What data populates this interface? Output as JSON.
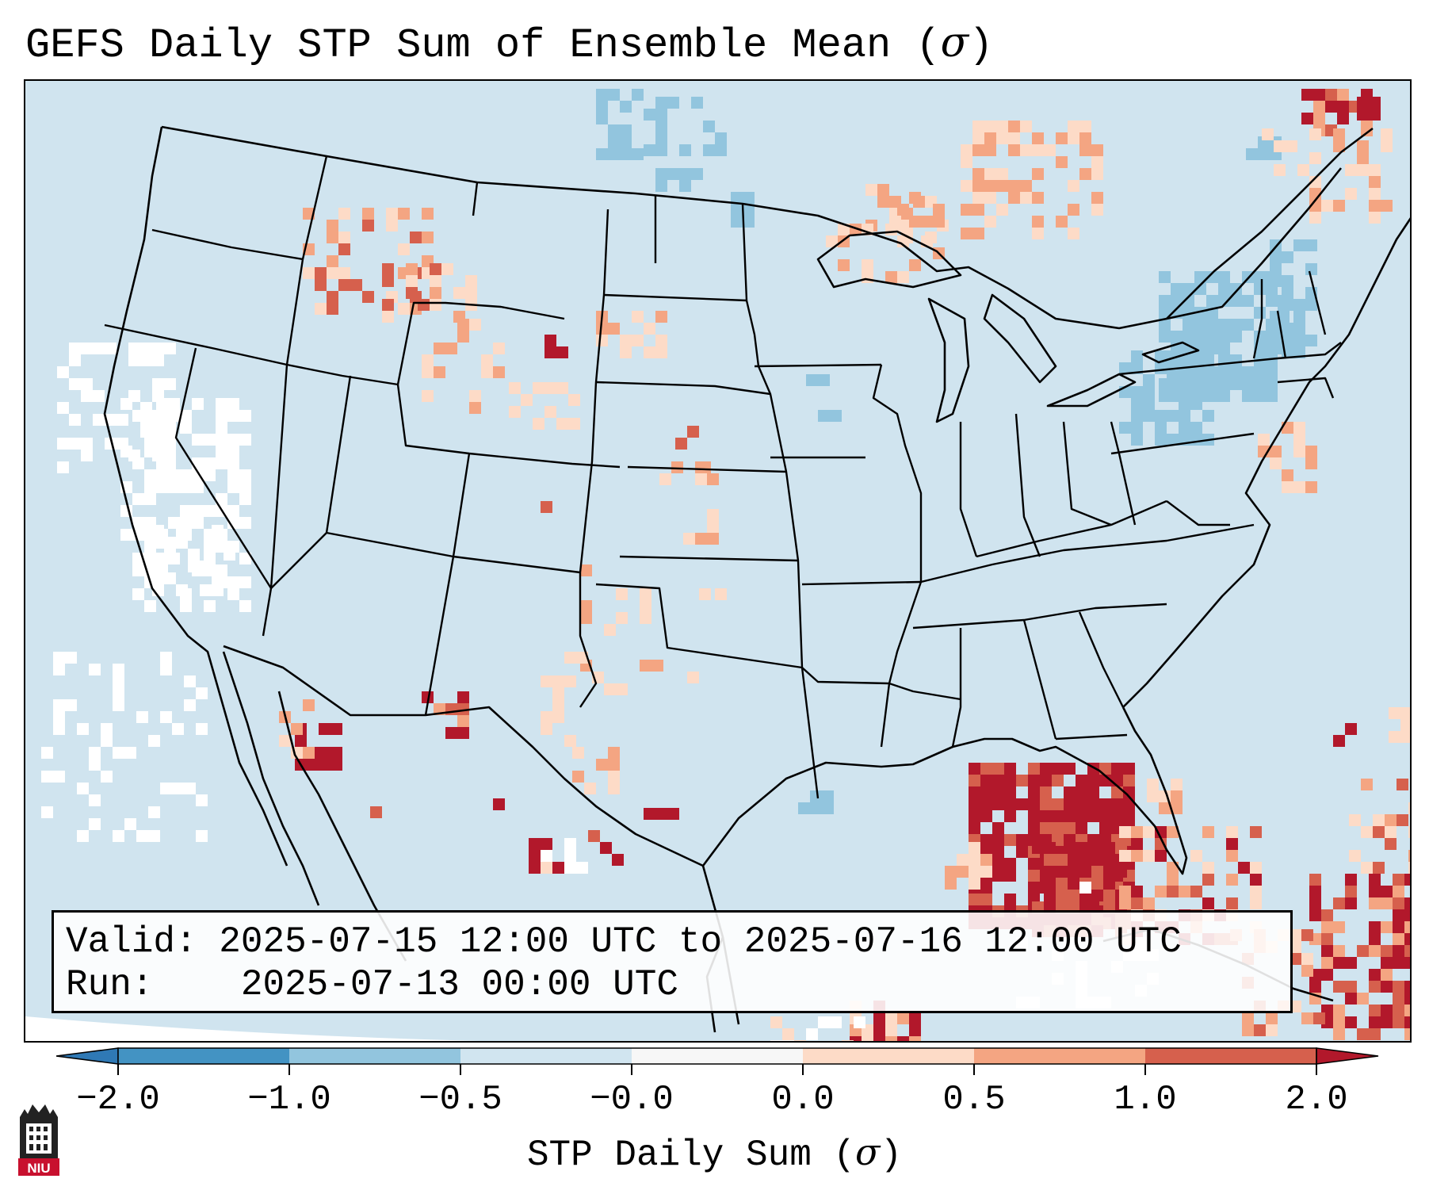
{
  "title": "GEFS Daily STP Sum of Ensemble Mean (σ)",
  "title_prefix": "GEFS Daily STP Sum of Ensemble Mean (",
  "title_symbol": "σ",
  "title_suffix": ")",
  "info": {
    "valid_label": "Valid:",
    "valid_value": "2025-07-15 12:00 UTC to 2025-07-16 12:00 UTC",
    "run_label": "Run:",
    "run_value": "2025-07-13 00:00 UTC"
  },
  "colorbar": {
    "label": "STP Daily Sum (σ)",
    "label_prefix": "STP Daily Sum (",
    "label_symbol": "σ",
    "label_suffix": ")",
    "ticks": [
      "−2.0",
      "−1.0",
      "−0.5",
      "−0.0",
      "0.0",
      "0.5",
      "1.0",
      "2.0"
    ],
    "bins": [
      {
        "range": "< -2.0",
        "color": "#2f79b5"
      },
      {
        "range": "-2.0 to -1.0",
        "color": "#4393c3"
      },
      {
        "range": "-1.0 to -0.5",
        "color": "#92c5de"
      },
      {
        "range": "-0.5 to -0.0",
        "color": "#d1e5f0"
      },
      {
        "range": "-0.0 to 0.0",
        "color": "#f7f7f7"
      },
      {
        "range": "0.0 to 0.5",
        "color": "#fddbc7"
      },
      {
        "range": "0.5 to 1.0",
        "color": "#f4a582"
      },
      {
        "range": "1.0 to 2.0",
        "color": "#d6604d"
      },
      {
        "range": "> 2.0",
        "color": "#b2182b"
      }
    ]
  },
  "map": {
    "background_color": "#d0e4ef",
    "highlighted_regions": [
      {
        "region": "Florida and eastern Gulf of Mexico",
        "category": "> 2.0"
      },
      {
        "region": "Cuba / Bahamas",
        "category": "1.0 to 2.0"
      },
      {
        "region": "Gulf of California",
        "category": "> 2.0"
      },
      {
        "region": "Northern Rockies (Idaho/Montana/Wyoming)",
        "category": "0.5 to 1.0"
      },
      {
        "region": "Upper Great Lakes / Ontario",
        "category": "0.5 to 1.0"
      },
      {
        "region": "Quebec / Gulf of St. Lawrence",
        "category": "1.0 to 2.0"
      },
      {
        "region": "New York / Pennsylvania",
        "category": "-1.0 to -0.5"
      },
      {
        "region": "Northern North Dakota",
        "category": "-1.0 to -0.5"
      },
      {
        "region": "Pacific off California / Baja",
        "category": "-0.0 to 0.0"
      }
    ]
  },
  "logo_text": "NIU",
  "colors": {
    "very_high": "#b2182b",
    "high": "#d6604d",
    "moderate": "#f4a582",
    "low": "#fddbc7",
    "neutral": "#ffffff",
    "slightly_negative": "#92c5de",
    "negative": "#4393c3",
    "logo_red": "#c8102e"
  }
}
